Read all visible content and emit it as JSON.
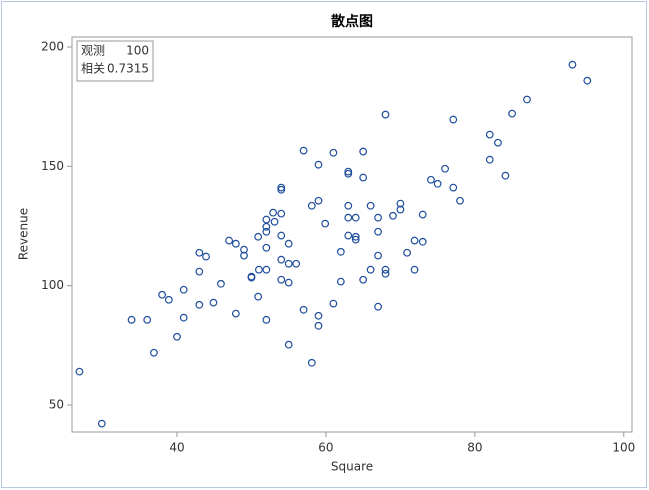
{
  "chart_data": {
    "type": "scatter",
    "title": "散点图",
    "x_label": "Square",
    "y_label": "Revenue",
    "color": "#1f4e9c",
    "xlim": [
      25.9,
      101.1
    ],
    "ylim": [
      38.7,
      204.2
    ],
    "xticks": [
      40,
      60,
      80,
      100
    ],
    "yticks": [
      50,
      100,
      150,
      200
    ],
    "inset": [
      [
        "观测",
        "100"
      ],
      [
        "相关",
        "0.7315"
      ]
    ],
    "x": [
      26.9,
      29.9,
      33.9,
      36,
      36.9,
      38,
      38.9,
      40,
      40.9,
      40.9,
      43,
      43,
      43,
      43.9,
      44.9,
      45.9,
      47,
      47.9,
      47.9,
      49,
      49,
      50,
      50,
      50.9,
      50.9,
      51,
      52,
      52,
      52,
      52,
      52,
      52,
      52.9,
      53.1,
      54,
      54,
      54,
      54,
      54,
      54,
      55,
      55,
      55,
      55,
      56,
      57,
      57,
      58.1,
      58.1,
      59,
      59,
      59,
      59,
      59.9,
      61,
      61,
      62,
      62,
      63,
      63,
      63,
      63,
      63,
      64,
      64,
      64,
      65,
      65,
      65,
      66,
      66,
      67,
      67,
      67,
      67,
      68,
      68,
      68,
      69,
      70,
      70,
      70.9,
      71.9,
      71.9,
      73,
      73,
      74.1,
      75,
      76,
      77.1,
      77.1,
      78,
      82,
      82,
      83.1,
      84.1,
      85,
      87,
      93.1,
      95.1
    ],
    "y": [
      64,
      42.2,
      85.7,
      85.7,
      71.9,
      96.2,
      94.1,
      78.6,
      98.3,
      86.6,
      113.8,
      105.9,
      92,
      112.2,
      92.9,
      100.8,
      118.9,
      88.3,
      117.6,
      115.1,
      112.6,
      103.8,
      103.4,
      120.5,
      95.4,
      106.7,
      127.7,
      124.7,
      122.6,
      115.9,
      106.7,
      85.7,
      130.6,
      126.8,
      110.9,
      102.5,
      121,
      141.1,
      140.2,
      130.2,
      117.6,
      101.3,
      75.3,
      109.2,
      109.2,
      156.6,
      89.9,
      133.5,
      67.7,
      135.6,
      150.7,
      87.4,
      83.2,
      126,
      155.7,
      92.5,
      101.7,
      114.2,
      147.8,
      146.9,
      133.5,
      128.5,
      121,
      128.5,
      120.5,
      119.3,
      156.2,
      145.3,
      102.5,
      133.5,
      106.7,
      128.5,
      122.6,
      112.6,
      91.2,
      171.7,
      106.7,
      105,
      129.3,
      134.4,
      131.9,
      113.8,
      118.9,
      106.7,
      129.8,
      118.4,
      144.4,
      142.7,
      149,
      169.6,
      141.1,
      135.6,
      163.3,
      152.8,
      159.9,
      146.1,
      172.1,
      178,
      192.6,
      185.9
    ]
  }
}
